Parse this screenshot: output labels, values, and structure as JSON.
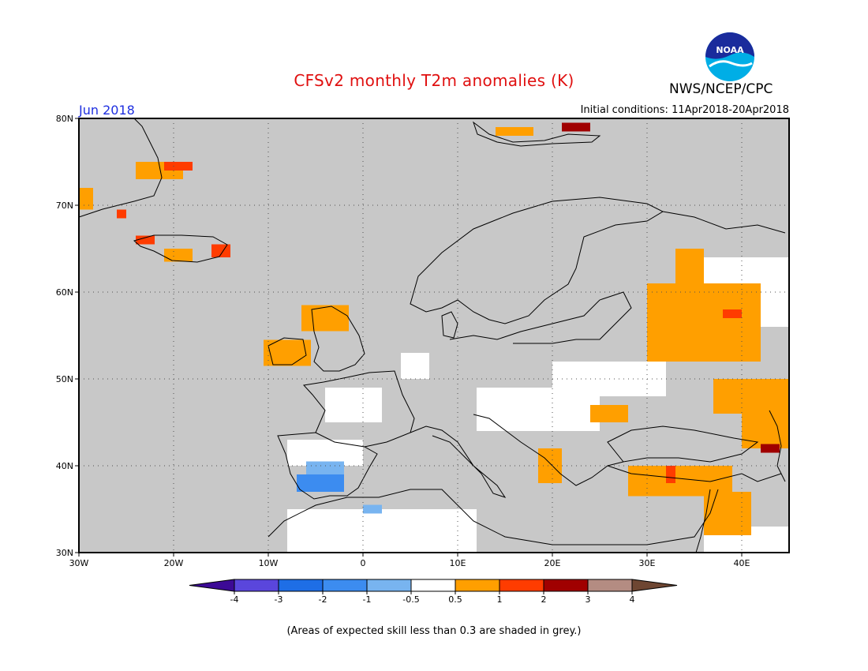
{
  "header": {
    "title": "CFSv2 monthly T2m anomalies (K)",
    "agency": "NWS/NCEP/CPC",
    "logo_text": "NOAA",
    "period": "Jun 2018",
    "initial_conditions": "Initial conditions: 11Apr2018-20Apr2018"
  },
  "map": {
    "lon_range": [
      -30,
      45
    ],
    "lat_range": [
      30,
      80
    ],
    "lat_ticks": [
      {
        "value": 80,
        "label": "80N"
      },
      {
        "value": 70,
        "label": "70N"
      },
      {
        "value": 60,
        "label": "60N"
      },
      {
        "value": 50,
        "label": "50N"
      },
      {
        "value": 40,
        "label": "40N"
      },
      {
        "value": 30,
        "label": "30N"
      }
    ],
    "lon_ticks": [
      {
        "value": -30,
        "label": "30W"
      },
      {
        "value": -20,
        "label": "20W"
      },
      {
        "value": -10,
        "label": "10W"
      },
      {
        "value": 0,
        "label": "0"
      },
      {
        "value": 10,
        "label": "10E"
      },
      {
        "value": 20,
        "label": "20E"
      },
      {
        "value": 30,
        "label": "30E"
      },
      {
        "value": 40,
        "label": "40E"
      }
    ],
    "colors": {
      "ocean_low_skill": "#c8c8c8",
      "neutral": "#ffffff",
      "warm_0_5_1": "#ff9f00",
      "warm_1_2": "#ff3c00",
      "warm_2_3": "#a00000",
      "cool_m1_m0_5": "#78b4f0",
      "cool_m2_m1": "#3c8cf0"
    },
    "anomaly_regions": [
      {
        "name": "Ireland",
        "category": "0.5-1",
        "lon": [
          -10.5,
          -5.5
        ],
        "lat": [
          51.5,
          54.5
        ]
      },
      {
        "name": "Scotland",
        "category": "0.5-1",
        "lon": [
          -6.5,
          -1.5
        ],
        "lat": [
          55.5,
          58.5
        ]
      },
      {
        "name": "Iceland west",
        "category": "1-2",
        "lon": [
          -24,
          -22
        ],
        "lat": [
          65.5,
          66.5
        ]
      },
      {
        "name": "Iceland east",
        "category": "1-2",
        "lon": [
          -16,
          -14
        ],
        "lat": [
          64,
          65.5
        ]
      },
      {
        "name": "Iceland south",
        "category": "0.5-1",
        "lon": [
          -21,
          -18
        ],
        "lat": [
          63.5,
          65
        ]
      },
      {
        "name": "Greenland east",
        "category": "0.5-1",
        "lon": [
          -24,
          -19
        ],
        "lat": [
          73,
          75
        ]
      },
      {
        "name": "Greenland east coast",
        "category": "1-2",
        "lon": [
          -21,
          -18
        ],
        "lat": [
          74,
          75
        ]
      },
      {
        "name": "Greenland tip",
        "category": "0.5-1",
        "lon": [
          -30,
          -28.5
        ],
        "lat": [
          69.5,
          72
        ]
      },
      {
        "name": "Greenland south",
        "category": "1-2",
        "lon": [
          -26,
          -25
        ],
        "lat": [
          68.5,
          69.5
        ]
      },
      {
        "name": "Svalbard",
        "category": "2-3",
        "lon": [
          21,
          24
        ],
        "lat": [
          78.5,
          79.5
        ]
      },
      {
        "name": "Svalbard west",
        "category": "0.5-1",
        "lon": [
          14,
          18
        ],
        "lat": [
          78,
          79
        ]
      },
      {
        "name": "West Russia",
        "category": "0.5-1",
        "lon": [
          30,
          42
        ],
        "lat": [
          52,
          61
        ]
      },
      {
        "name": "Russia north",
        "category": "0.5-1",
        "lon": [
          33,
          36
        ],
        "lat": [
          61,
          65
        ]
      },
      {
        "name": "Russia hotspot",
        "category": "1-2",
        "lon": [
          38,
          40
        ],
        "lat": [
          57,
          58
        ]
      },
      {
        "name": "Ukraine",
        "category": "0.5-1",
        "lon": [
          37,
          45
        ],
        "lat": [
          46,
          50
        ]
      },
      {
        "name": "Caspian",
        "category": "0.5-1",
        "lon": [
          40,
          45
        ],
        "lat": [
          42,
          47
        ]
      },
      {
        "name": "Caucasus",
        "category": "2-3",
        "lon": [
          42,
          44
        ],
        "lat": [
          41.5,
          42.5
        ]
      },
      {
        "name": "Turkey",
        "category": "0.5-1",
        "lon": [
          28,
          39
        ],
        "lat": [
          36.5,
          40
        ]
      },
      {
        "name": "Turkey hotspot",
        "category": "1-2",
        "lon": [
          32,
          33
        ],
        "lat": [
          38,
          40
        ]
      },
      {
        "name": "Levant",
        "category": "0.5-1",
        "lon": [
          36,
          41
        ],
        "lat": [
          32,
          37
        ]
      },
      {
        "name": "Balkans",
        "category": "0.5-1",
        "lon": [
          18.5,
          21
        ],
        "lat": [
          38,
          42
        ]
      },
      {
        "name": "Romania",
        "category": "0.5-1",
        "lon": [
          24,
          28
        ],
        "lat": [
          45,
          47
        ]
      },
      {
        "name": "Spain cool",
        "category": "-2--1",
        "lon": [
          -7,
          -2
        ],
        "lat": [
          37,
          39
        ]
      },
      {
        "name": "Spain cool north",
        "category": "-1--0.5",
        "lon": [
          -6,
          -2
        ],
        "lat": [
          39,
          40.5
        ]
      },
      {
        "name": "North Africa cool",
        "category": "-1--0.5",
        "lon": [
          0,
          2
        ],
        "lat": [
          34.5,
          35.5
        ]
      }
    ],
    "white_regions": [
      {
        "name": "Central Europe",
        "lon": [
          12,
          25
        ],
        "lat": [
          44,
          49
        ]
      },
      {
        "name": "Eastern Europe",
        "lon": [
          20,
          32
        ],
        "lat": [
          48,
          52
        ]
      },
      {
        "name": "Russia interior",
        "lon": [
          34,
          45
        ],
        "lat": [
          56,
          64
        ]
      },
      {
        "name": "Benelux",
        "lon": [
          4,
          7
        ],
        "lat": [
          50,
          53
        ]
      },
      {
        "name": "France spots",
        "lon": [
          -4,
          2
        ],
        "lat": [
          45,
          49
        ]
      },
      {
        "name": "North Africa",
        "lon": [
          -8,
          12
        ],
        "lat": [
          30,
          35
        ]
      },
      {
        "name": "Middle East",
        "lon": [
          36,
          45
        ],
        "lat": [
          30,
          33
        ]
      },
      {
        "name": "Iberia",
        "lon": [
          -8,
          0
        ],
        "lat": [
          40,
          43
        ]
      }
    ],
    "annotation": ""
  },
  "colorbar": {
    "labels": [
      "-4",
      "-3",
      "-2",
      "-1",
      "-0.5",
      "0.5",
      "1",
      "2",
      "3",
      "4"
    ],
    "colors": [
      "#3c0a96",
      "#5a46dc",
      "#1e6ee6",
      "#3c8cf0",
      "#78b4f0",
      "#ffffff",
      "#ff9f00",
      "#ff3c00",
      "#a00000",
      "#b48c82",
      "#6e4632"
    ]
  },
  "footnote": "(Areas of expected skill less than 0.3 are shaded in grey.)"
}
